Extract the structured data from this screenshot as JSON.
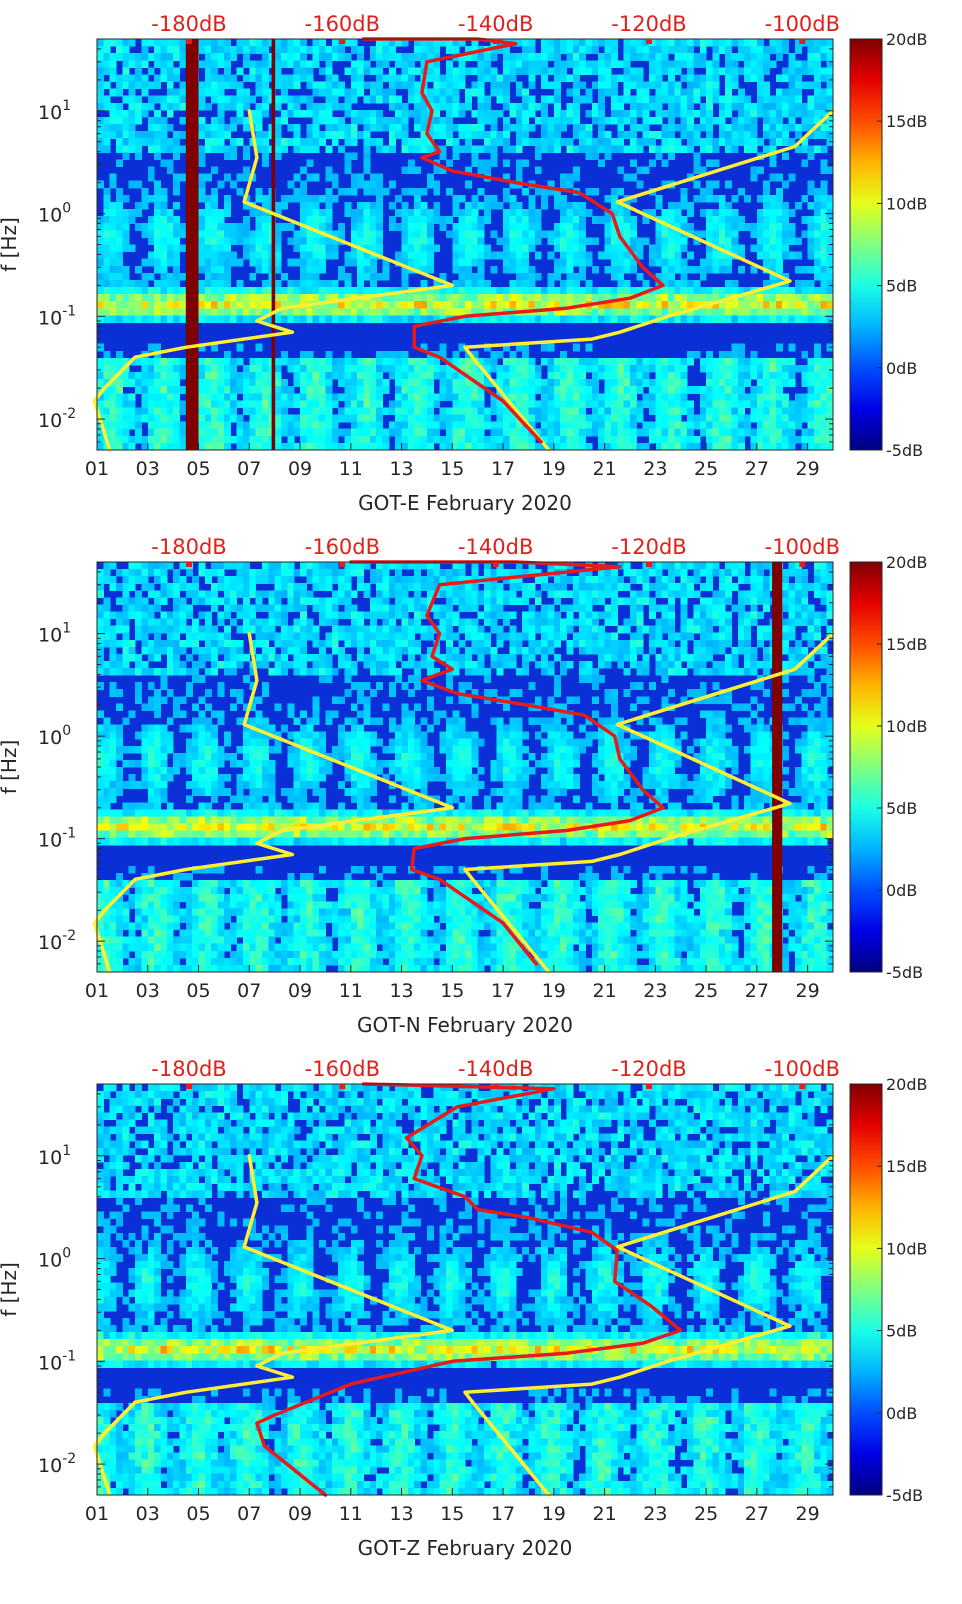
{
  "chart_data": [
    {
      "type": "heatmap",
      "xlabel": "GOT-E February 2020",
      "ylabel": "f [Hz]",
      "x_ticks": [
        "01",
        "03",
        "05",
        "07",
        "09",
        "11",
        "13",
        "15",
        "17",
        "19",
        "21",
        "23",
        "25",
        "27",
        "29"
      ],
      "y_ticks": [
        {
          "value": 0.01,
          "base": "10",
          "exp": "-2"
        },
        {
          "value": 0.1,
          "base": "10",
          "exp": "-1"
        },
        {
          "value": 1,
          "base": "10",
          "exp": "0"
        },
        {
          "value": 10,
          "base": "10",
          "exp": "1"
        }
      ],
      "xlim": [
        1,
        30
      ],
      "ylim": [
        0.005,
        50
      ],
      "y_scale": "log",
      "top_axis_labels": [
        "-180dB",
        "-160dB",
        "-140dB",
        "-120dB",
        "-100dB"
      ],
      "top_axis_values": [
        -180,
        -160,
        -140,
        -120,
        -100
      ],
      "top_axis_range": [
        -192,
        -96
      ],
      "colorbar": {
        "labels": [
          "20dB",
          "15dB",
          "10dB",
          "5dB",
          "0dB",
          "-5dB"
        ],
        "min": -5,
        "max": 20
      },
      "series": [
        {
          "color": "#ffee33",
          "points": [
            [
              7.0,
              10
            ],
            [
              7.3,
              3.5
            ],
            [
              6.8,
              1.3
            ],
            [
              15.0,
              0.2
            ],
            [
              8.3,
              0.12
            ],
            [
              7.3,
              0.09
            ],
            [
              8.7,
              0.07
            ],
            [
              4.5,
              0.05
            ],
            [
              2.5,
              0.04
            ],
            [
              1.3,
              0.02
            ],
            [
              0.9,
              0.015
            ],
            [
              1.5,
              0.005
            ]
          ]
        },
        {
          "color": "#ffee33",
          "points": [
            [
              30.0,
              10
            ],
            [
              28.5,
              4.5
            ],
            [
              21.5,
              1.3
            ],
            [
              28.3,
              0.22
            ],
            [
              23.5,
              0.1
            ],
            [
              21.6,
              0.07
            ],
            [
              20.5,
              0.06
            ],
            [
              15.5,
              0.05
            ],
            [
              15.8,
              0.04
            ],
            [
              18.8,
              0.005
            ]
          ]
        },
        {
          "color": "#e81a1a",
          "points": [
            [
              11.5,
              50
            ],
            [
              16.0,
              50
            ],
            [
              17.5,
              45
            ],
            [
              14.0,
              30
            ],
            [
              13.8,
              15
            ],
            [
              14.2,
              10
            ],
            [
              14.0,
              6
            ],
            [
              14.5,
              4
            ],
            [
              13.8,
              3.5
            ],
            [
              15.0,
              2.6
            ],
            [
              17.5,
              2
            ],
            [
              20.0,
              1.6
            ],
            [
              21.3,
              1.0
            ],
            [
              21.6,
              0.6
            ],
            [
              22.5,
              0.3
            ],
            [
              23.3,
              0.2
            ],
            [
              22.0,
              0.15
            ],
            [
              19.5,
              0.12
            ],
            [
              15.5,
              0.1
            ],
            [
              13.5,
              0.08
            ],
            [
              13.5,
              0.05
            ],
            [
              14.5,
              0.04
            ],
            [
              17.0,
              0.015
            ],
            [
              18.5,
              0.006
            ]
          ]
        }
      ],
      "vertical_bands": [
        {
          "x_start": 4.5,
          "x_end": 5.0,
          "color": "#7f0000"
        },
        {
          "x_start": 7.88,
          "x_end": 8.02,
          "color": "#7f0000"
        }
      ]
    },
    {
      "type": "heatmap",
      "xlabel": "GOT-N February 2020",
      "ylabel": "f [Hz]",
      "x_ticks": [
        "01",
        "03",
        "05",
        "07",
        "09",
        "11",
        "13",
        "15",
        "17",
        "19",
        "21",
        "23",
        "25",
        "27",
        "29"
      ],
      "y_ticks": [
        {
          "value": 0.01,
          "base": "10",
          "exp": "-2"
        },
        {
          "value": 0.1,
          "base": "10",
          "exp": "-1"
        },
        {
          "value": 1,
          "base": "10",
          "exp": "0"
        },
        {
          "value": 10,
          "base": "10",
          "exp": "1"
        }
      ],
      "xlim": [
        1,
        30
      ],
      "ylim": [
        0.005,
        50
      ],
      "y_scale": "log",
      "top_axis_labels": [
        "-180dB",
        "-160dB",
        "-140dB",
        "-120dB",
        "-100dB"
      ],
      "top_axis_values": [
        -180,
        -160,
        -140,
        -120,
        -100
      ],
      "top_axis_range": [
        -192,
        -96
      ],
      "colorbar": {
        "labels": [
          "20dB",
          "15dB",
          "10dB",
          "5dB",
          "0dB",
          "-5dB"
        ],
        "min": -5,
        "max": 20
      },
      "series": [
        {
          "color": "#ffee33",
          "points": [
            [
              7.0,
              10
            ],
            [
              7.3,
              3.5
            ],
            [
              6.8,
              1.3
            ],
            [
              15.0,
              0.2
            ],
            [
              8.3,
              0.12
            ],
            [
              7.3,
              0.09
            ],
            [
              8.7,
              0.07
            ],
            [
              4.5,
              0.05
            ],
            [
              2.5,
              0.04
            ],
            [
              1.3,
              0.02
            ],
            [
              0.9,
              0.015
            ],
            [
              1.5,
              0.005
            ]
          ]
        },
        {
          "color": "#ffee33",
          "points": [
            [
              30.0,
              10
            ],
            [
              28.5,
              4.5
            ],
            [
              21.5,
              1.3
            ],
            [
              28.3,
              0.22
            ],
            [
              23.5,
              0.1
            ],
            [
              21.6,
              0.07
            ],
            [
              20.5,
              0.06
            ],
            [
              15.5,
              0.05
            ],
            [
              15.8,
              0.04
            ],
            [
              18.8,
              0.005
            ]
          ]
        },
        {
          "color": "#e81a1a",
          "points": [
            [
              11.0,
              50
            ],
            [
              17.5,
              50
            ],
            [
              21.6,
              45
            ],
            [
              14.5,
              30
            ],
            [
              14.0,
              15
            ],
            [
              14.5,
              10
            ],
            [
              14.2,
              6
            ],
            [
              15.0,
              4.5
            ],
            [
              13.8,
              3.5
            ],
            [
              15.2,
              2.6
            ],
            [
              18.0,
              2
            ],
            [
              20.2,
              1.6
            ],
            [
              21.4,
              1.0
            ],
            [
              21.6,
              0.6
            ],
            [
              22.5,
              0.3
            ],
            [
              23.3,
              0.2
            ],
            [
              22.0,
              0.15
            ],
            [
              19.5,
              0.12
            ],
            [
              15.5,
              0.1
            ],
            [
              13.5,
              0.08
            ],
            [
              13.4,
              0.05
            ],
            [
              14.5,
              0.04
            ],
            [
              17.0,
              0.015
            ],
            [
              18.3,
              0.006
            ]
          ]
        }
      ],
      "vertical_bands": [
        {
          "x_start": 27.6,
          "x_end": 28.0,
          "color": "#7f0000"
        }
      ]
    },
    {
      "type": "heatmap",
      "xlabel": "GOT-Z February 2020",
      "ylabel": "f [Hz]",
      "x_ticks": [
        "01",
        "03",
        "05",
        "07",
        "09",
        "11",
        "13",
        "15",
        "17",
        "19",
        "21",
        "23",
        "25",
        "27",
        "29"
      ],
      "y_ticks": [
        {
          "value": 0.01,
          "base": "10",
          "exp": "-2"
        },
        {
          "value": 0.1,
          "base": "10",
          "exp": "-1"
        },
        {
          "value": 1,
          "base": "10",
          "exp": "0"
        },
        {
          "value": 10,
          "base": "10",
          "exp": "1"
        }
      ],
      "xlim": [
        1,
        30
      ],
      "ylim": [
        0.005,
        50
      ],
      "y_scale": "log",
      "top_axis_labels": [
        "-180dB",
        "-160dB",
        "-140dB",
        "-120dB",
        "-100dB"
      ],
      "top_axis_values": [
        -180,
        -160,
        -140,
        -120,
        -100
      ],
      "top_axis_range": [
        -192,
        -96
      ],
      "colorbar": {
        "labels": [
          "20dB",
          "15dB",
          "10dB",
          "5dB",
          "0dB",
          "-5dB"
        ],
        "min": -5,
        "max": 20
      },
      "series": [
        {
          "color": "#ffee33",
          "points": [
            [
              7.0,
              10
            ],
            [
              7.3,
              3.5
            ],
            [
              6.8,
              1.3
            ],
            [
              15.0,
              0.2
            ],
            [
              8.3,
              0.12
            ],
            [
              7.3,
              0.09
            ],
            [
              8.7,
              0.07
            ],
            [
              4.5,
              0.05
            ],
            [
              2.5,
              0.04
            ],
            [
              1.3,
              0.02
            ],
            [
              0.9,
              0.015
            ],
            [
              1.5,
              0.005
            ]
          ]
        },
        {
          "color": "#ffee33",
          "points": [
            [
              30.0,
              10
            ],
            [
              28.5,
              4.5
            ],
            [
              21.5,
              1.3
            ],
            [
              28.3,
              0.22
            ],
            [
              23.5,
              0.1
            ],
            [
              21.6,
              0.07
            ],
            [
              20.5,
              0.06
            ],
            [
              15.5,
              0.05
            ],
            [
              15.8,
              0.04
            ],
            [
              18.8,
              0.005
            ]
          ]
        },
        {
          "color": "#e81a1a",
          "points": [
            [
              11.5,
              50
            ],
            [
              19.0,
              45
            ],
            [
              15.2,
              30
            ],
            [
              13.2,
              15
            ],
            [
              13.8,
              10
            ],
            [
              13.5,
              6
            ],
            [
              15.5,
              4
            ],
            [
              16.0,
              3
            ],
            [
              18.0,
              2.5
            ],
            [
              20.5,
              1.8
            ],
            [
              21.5,
              1.2
            ],
            [
              21.4,
              0.6
            ],
            [
              22.8,
              0.35
            ],
            [
              24.0,
              0.2
            ],
            [
              22.5,
              0.15
            ],
            [
              19.5,
              0.12
            ],
            [
              15.0,
              0.1
            ],
            [
              11.0,
              0.06
            ],
            [
              8.0,
              0.03
            ],
            [
              7.3,
              0.025
            ],
            [
              7.6,
              0.015
            ],
            [
              10.0,
              0.005
            ]
          ]
        }
      ],
      "vertical_bands": []
    }
  ]
}
